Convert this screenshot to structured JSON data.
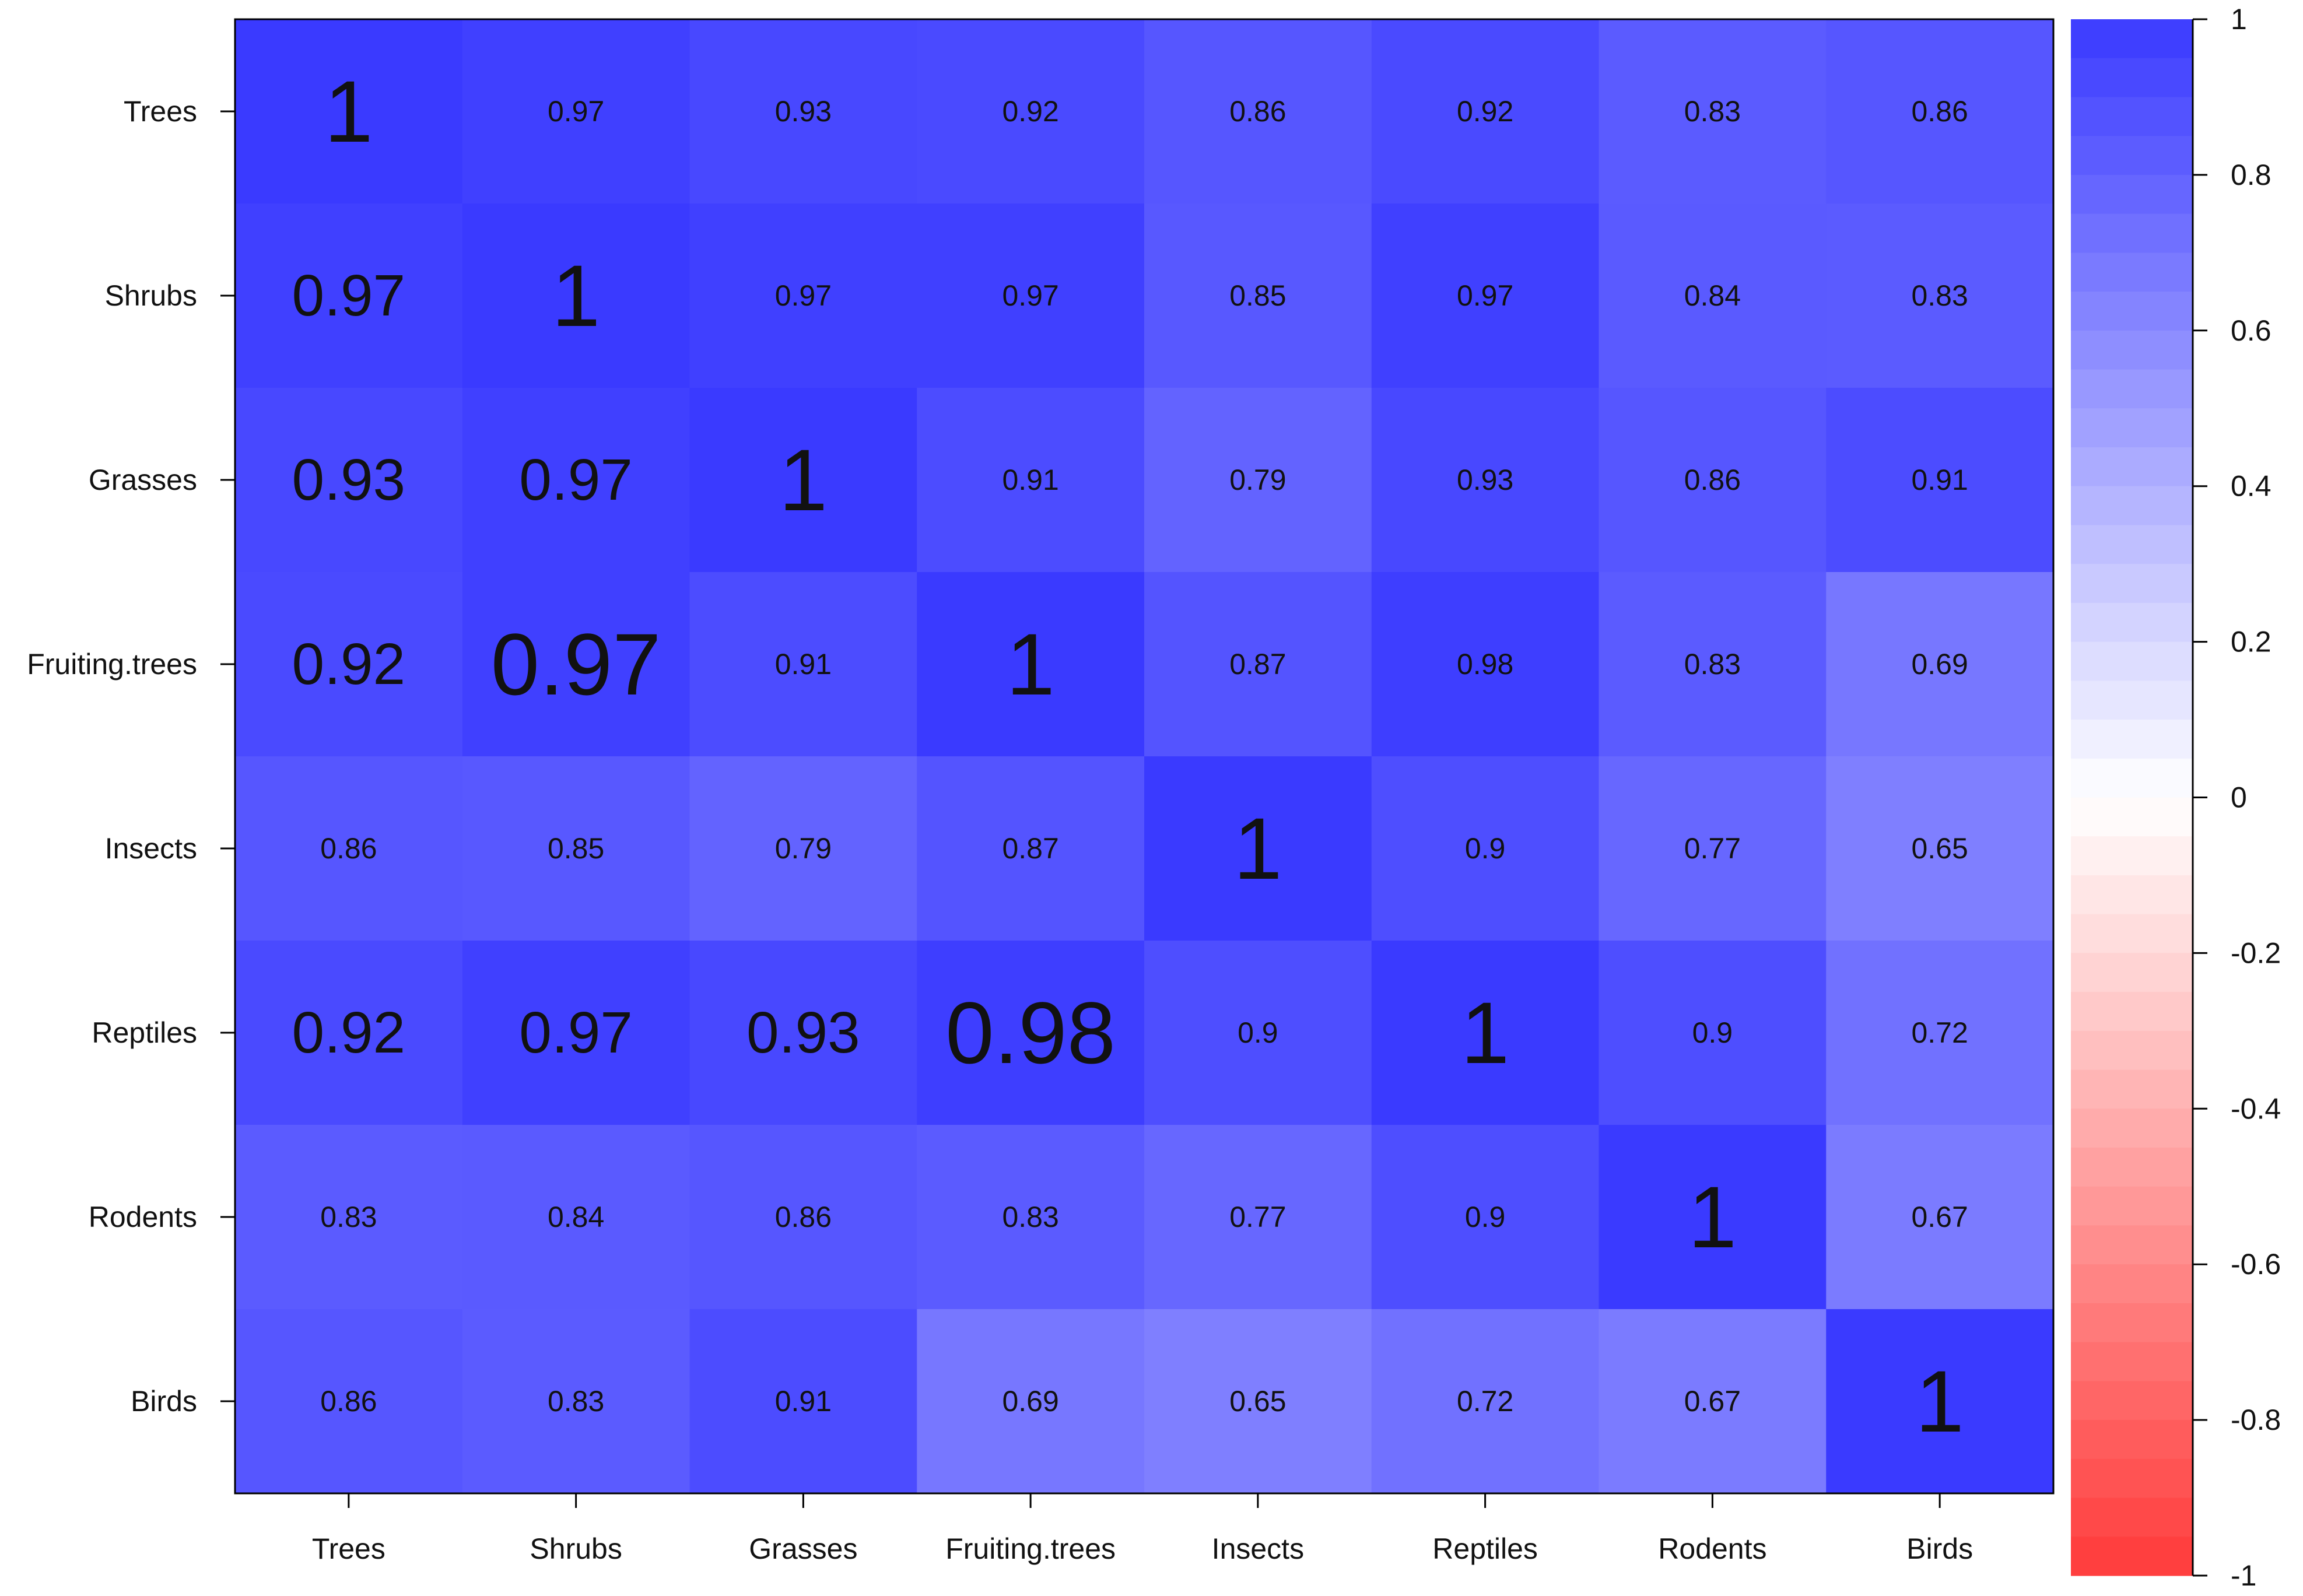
{
  "chart_data": {
    "type": "heatmap",
    "categories": [
      "Trees",
      "Shrubs",
      "Grasses",
      "Fruiting.trees",
      "Insects",
      "Reptiles",
      "Rodents",
      "Birds"
    ],
    "values": [
      [
        1,
        0.97,
        0.93,
        0.92,
        0.86,
        0.92,
        0.83,
        0.86
      ],
      [
        0.97,
        1,
        0.97,
        0.97,
        0.85,
        0.97,
        0.84,
        0.83
      ],
      [
        0.93,
        0.97,
        1,
        0.91,
        0.79,
        0.93,
        0.86,
        0.91
      ],
      [
        0.92,
        0.97,
        0.91,
        1,
        0.87,
        0.98,
        0.83,
        0.69
      ],
      [
        0.86,
        0.85,
        0.79,
        0.87,
        1,
        0.9,
        0.77,
        0.65
      ],
      [
        0.92,
        0.97,
        0.93,
        0.98,
        0.9,
        1,
        0.9,
        0.72
      ],
      [
        0.83,
        0.84,
        0.86,
        0.83,
        0.77,
        0.9,
        1,
        0.67
      ],
      [
        0.86,
        0.83,
        0.91,
        0.69,
        0.65,
        0.72,
        0.67,
        1
      ]
    ],
    "zlim": [
      -1,
      1
    ],
    "zticks": [
      1,
      0.8,
      0.6,
      0.4,
      0.2,
      0,
      -0.2,
      -0.4,
      -0.6,
      -0.8,
      -1
    ],
    "colors": {
      "low": "#ff3a3a",
      "mid": "#ffffff",
      "high": "#3a3aff"
    }
  }
}
